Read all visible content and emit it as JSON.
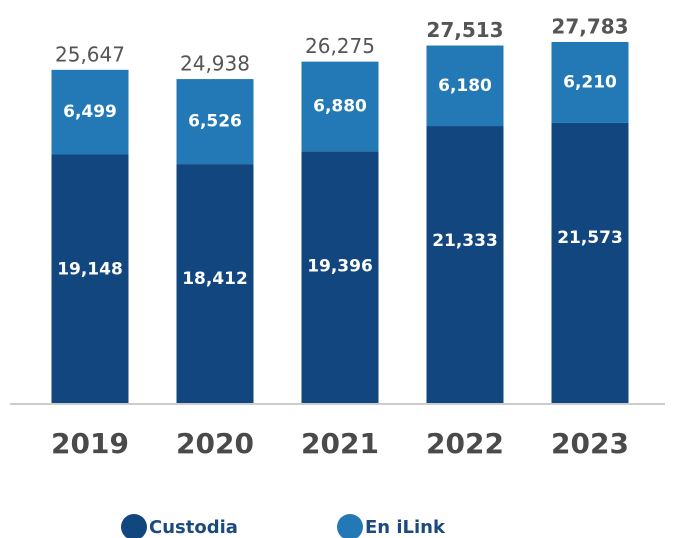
{
  "chart_data": {
    "type": "stacked_bar",
    "categories": [
      "2019",
      "2020",
      "2021",
      "2022",
      "2023"
    ],
    "series": [
      {
        "name": "Custodia",
        "color": "#12467f",
        "values": [
          19148,
          18412,
          19396,
          21333,
          21573
        ],
        "value_labels": [
          "19,148",
          "18,412",
          "19,396",
          "21,333",
          "21,573"
        ]
      },
      {
        "name": "En iLink",
        "color": "#2279b5",
        "values": [
          6499,
          6526,
          6880,
          6180,
          6210
        ],
        "value_labels": [
          "6,499",
          "6,526",
          "6,880",
          "6,180",
          "6,210"
        ]
      }
    ],
    "totals": [
      25647,
      24938,
      26275,
      27513,
      27783
    ],
    "total_labels": [
      "25,647",
      "24,938",
      "26,275",
      "27,513",
      "27,783"
    ]
  }
}
